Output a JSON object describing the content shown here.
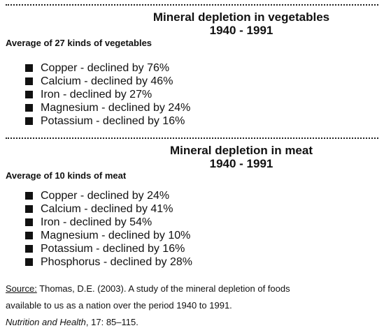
{
  "vegetables": {
    "title_line1": "Mineral depletion in vegetables",
    "title_line2": "1940 - 1991",
    "subtitle": "Average of 27 kinds of vegetables",
    "items": [
      "Copper - declined by 76%",
      "Calcium - declined by 46%",
      "Iron - declined by 27%",
      "Magnesium - declined by 24%",
      "Potassium - declined by 16%"
    ]
  },
  "meat": {
    "title_line1": "Mineral depletion in meat",
    "title_line2": "1940 - 1991",
    "subtitle": "Average of 10 kinds of meat",
    "items": [
      "Copper - declined by 24%",
      "Calcium - declined by 41%",
      "Iron - declined by 54%",
      "Magnesium - declined by 10%",
      "Potassium - declined by 16%",
      "Phosphorus - declined by 28%"
    ]
  },
  "source": {
    "label": "Source:",
    "line1_rest": " Thomas, D.E. (2003). A study of the mineral depletion of foods",
    "line2": "available to us as a nation over the  period 1940 to 1991.",
    "journal": "Nutrition and Health",
    "citation": ", 17: 85–115."
  }
}
